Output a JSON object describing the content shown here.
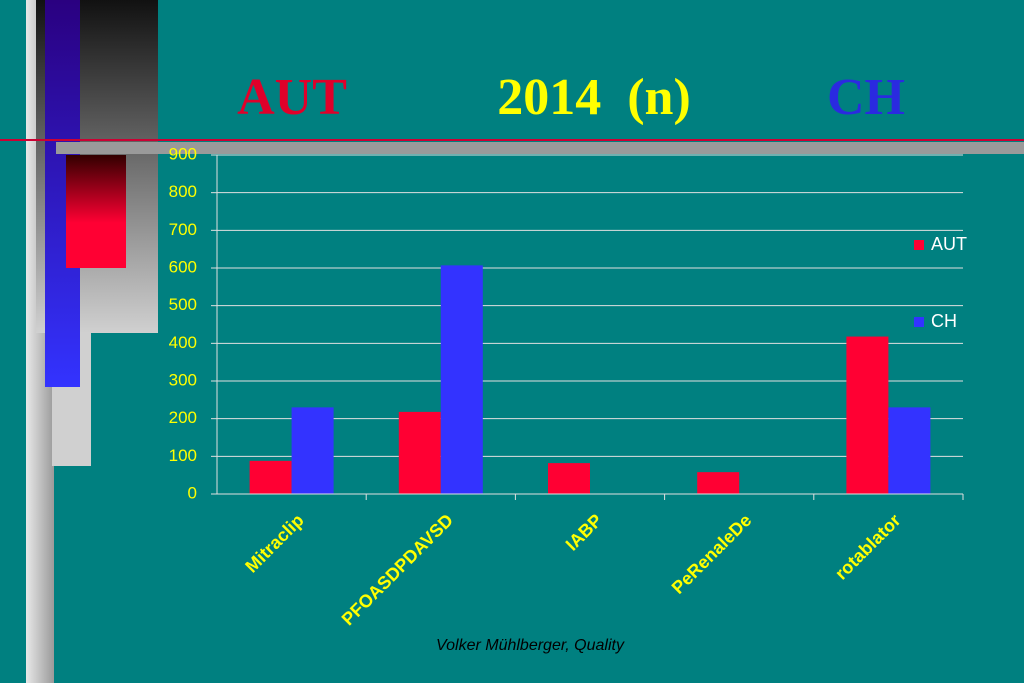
{
  "chart_data": {
    "type": "bar",
    "title": "2014  (n)",
    "categories": [
      "Mitraclip",
      "PFOASDPDAVSD",
      "IABP",
      "PeRenaleDe",
      "rotablator"
    ],
    "series": [
      {
        "name": "AUT",
        "color": "#ff0033",
        "values": [
          88,
          218,
          82,
          58,
          418
        ]
      },
      {
        "name": "CH",
        "color": "#3333ff",
        "values": [
          230,
          607,
          null,
          null,
          230
        ]
      }
    ],
    "ylim": [
      0,
      900
    ],
    "yticks": [
      0,
      100,
      200,
      300,
      400,
      500,
      600,
      700,
      800,
      900
    ],
    "grid": true
  },
  "footer": "Volker Mühlberger, Quality"
}
